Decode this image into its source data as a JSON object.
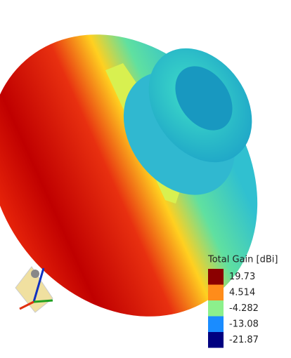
{
  "legend": {
    "title": "Total Gain [dBi]",
    "entries": [
      {
        "label": "19.73",
        "color": "#8b0000"
      },
      {
        "label": "4.514",
        "color": "#ff8c1a"
      },
      {
        "label": "-4.282",
        "color": "#8cf08c"
      },
      {
        "label": "-13.08",
        "color": "#1a8cff"
      },
      {
        "label": "-21.87",
        "color": "#000080"
      }
    ]
  }
}
